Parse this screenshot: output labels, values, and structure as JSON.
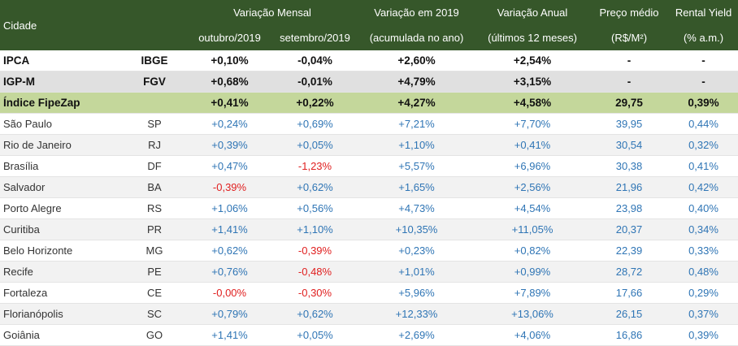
{
  "header": {
    "cidade": "Cidade",
    "variacao_mensal": "Variação Mensal",
    "outubro": "outubro/2019",
    "setembro": "setembro/2019",
    "variacao_2019": "Variação em 2019",
    "acumulada": "(acumulada no ano)",
    "variacao_anual": "Variação Anual",
    "ultimos12": "(últimos 12 meses)",
    "preco_medio": "Preço médio",
    "preco_unit": "(R$/M²)",
    "rental_yield": "Rental Yield",
    "rental_unit": "(% a.m.)"
  },
  "indices": [
    {
      "name": "IPCA",
      "src": "IBGE",
      "out": "+0,10%",
      "set": "-0,04%",
      "ano": "+2,60%",
      "anual": "+2,54%",
      "preco": "-",
      "yield": "-"
    },
    {
      "name": "IGP-M",
      "src": "FGV",
      "out": "+0,68%",
      "set": "-0,01%",
      "ano": "+4,79%",
      "anual": "+3,15%",
      "preco": "-",
      "yield": "-"
    },
    {
      "name": "Índice FipeZap",
      "src": "",
      "out": "+0,41%",
      "set": "+0,22%",
      "ano": "+4,27%",
      "anual": "+4,58%",
      "preco": "29,75",
      "yield": "0,39%"
    }
  ],
  "cities": [
    {
      "name": "São Paulo",
      "uf": "SP",
      "out": "+0,24%",
      "set": "+0,69%",
      "ano": "+7,21%",
      "anual": "+7,70%",
      "preco": "39,95",
      "yield": "0,44%"
    },
    {
      "name": "Rio de Janeiro",
      "uf": "RJ",
      "out": "+0,39%",
      "set": "+0,05%",
      "ano": "+1,10%",
      "anual": "+0,41%",
      "preco": "30,54",
      "yield": "0,32%"
    },
    {
      "name": "Brasília",
      "uf": "DF",
      "out": "+0,47%",
      "set": "-1,23%",
      "ano": "+5,57%",
      "anual": "+6,96%",
      "preco": "30,38",
      "yield": "0,41%"
    },
    {
      "name": "Salvador",
      "uf": "BA",
      "out": "-0,39%",
      "set": "+0,62%",
      "ano": "+1,65%",
      "anual": "+2,56%",
      "preco": "21,96",
      "yield": "0,42%"
    },
    {
      "name": "Porto Alegre",
      "uf": "RS",
      "out": "+1,06%",
      "set": "+0,56%",
      "ano": "+4,73%",
      "anual": "+4,54%",
      "preco": "23,98",
      "yield": "0,40%"
    },
    {
      "name": "Curitiba",
      "uf": "PR",
      "out": "+1,41%",
      "set": "+1,10%",
      "ano": "+10,35%",
      "anual": "+11,05%",
      "preco": "20,37",
      "yield": "0,34%"
    },
    {
      "name": "Belo Horizonte",
      "uf": "MG",
      "out": "+0,62%",
      "set": "-0,39%",
      "ano": "+0,23%",
      "anual": "+0,82%",
      "preco": "22,39",
      "yield": "0,33%"
    },
    {
      "name": "Recife",
      "uf": "PE",
      "out": "+0,76%",
      "set": "-0,48%",
      "ano": "+1,01%",
      "anual": "+0,99%",
      "preco": "28,72",
      "yield": "0,48%"
    },
    {
      "name": "Fortaleza",
      "uf": "CE",
      "out": "-0,00%",
      "set": "-0,30%",
      "ano": "+5,96%",
      "anual": "+7,89%",
      "preco": "17,66",
      "yield": "0,29%"
    },
    {
      "name": "Florianópolis",
      "uf": "SC",
      "out": "+0,79%",
      "set": "+0,62%",
      "ano": "+12,33%",
      "anual": "+13,06%",
      "preco": "26,15",
      "yield": "0,37%"
    },
    {
      "name": "Goiânia",
      "uf": "GO",
      "out": "+1,41%",
      "set": "+0,05%",
      "ano": "+2,69%",
      "anual": "+4,06%",
      "preco": "16,86",
      "yield": "0,39%"
    }
  ],
  "colors": {
    "header_bg": "#36572a",
    "positive": "#2f75b5",
    "negative": "#e02020",
    "fipezap_bg": "#c4d79b"
  }
}
